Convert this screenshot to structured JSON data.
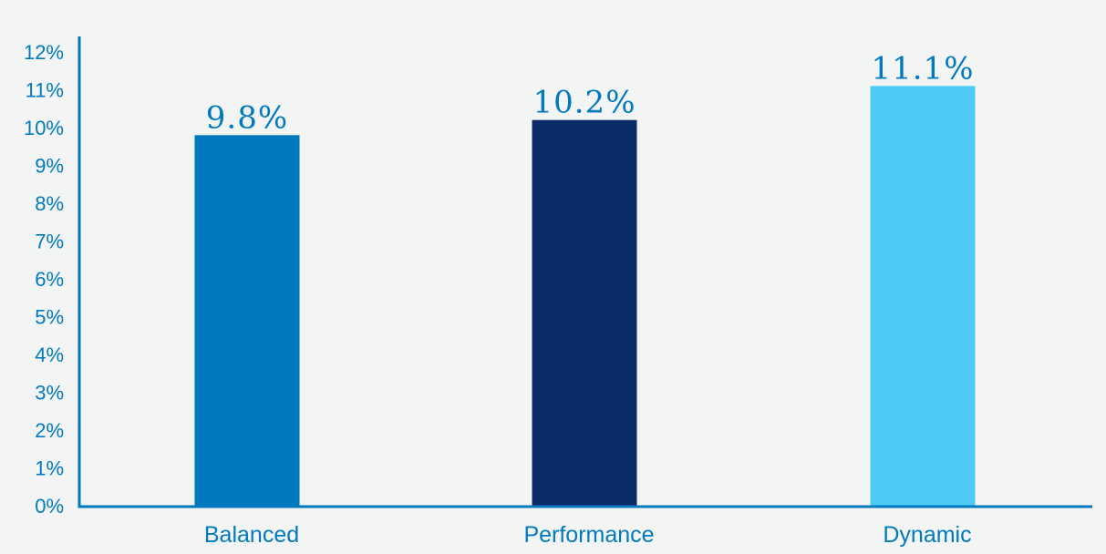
{
  "colors": {
    "background": "#f3f5f5",
    "axis": "#0079c1",
    "text": "#0079c1"
  },
  "chart_data": {
    "type": "bar",
    "categories": [
      "Balanced",
      "Performance",
      "Dynamic"
    ],
    "values": [
      9.8,
      10.2,
      11.1
    ],
    "data_labels": [
      "9.8%",
      "10.2%",
      "11.1%"
    ],
    "bar_colors": [
      "#0079be",
      "#0a2a69",
      "#4dcbf4"
    ],
    "ylim": [
      0,
      12
    ],
    "yticks": [
      {
        "value": 0,
        "label": "0%"
      },
      {
        "value": 1,
        "label": "1%"
      },
      {
        "value": 2,
        "label": "2%"
      },
      {
        "value": 3,
        "label": "3%"
      },
      {
        "value": 4,
        "label": "4%"
      },
      {
        "value": 5,
        "label": "5%"
      },
      {
        "value": 6,
        "label": "6%"
      },
      {
        "value": 7,
        "label": "7%"
      },
      {
        "value": 8,
        "label": "8%"
      },
      {
        "value": 9,
        "label": "9%"
      },
      {
        "value": 10,
        "label": "10%"
      },
      {
        "value": 11,
        "label": "11%"
      },
      {
        "value": 12,
        "label": "12%"
      }
    ],
    "grid": false,
    "legend": "none",
    "title": "",
    "xlabel": "",
    "ylabel": ""
  }
}
